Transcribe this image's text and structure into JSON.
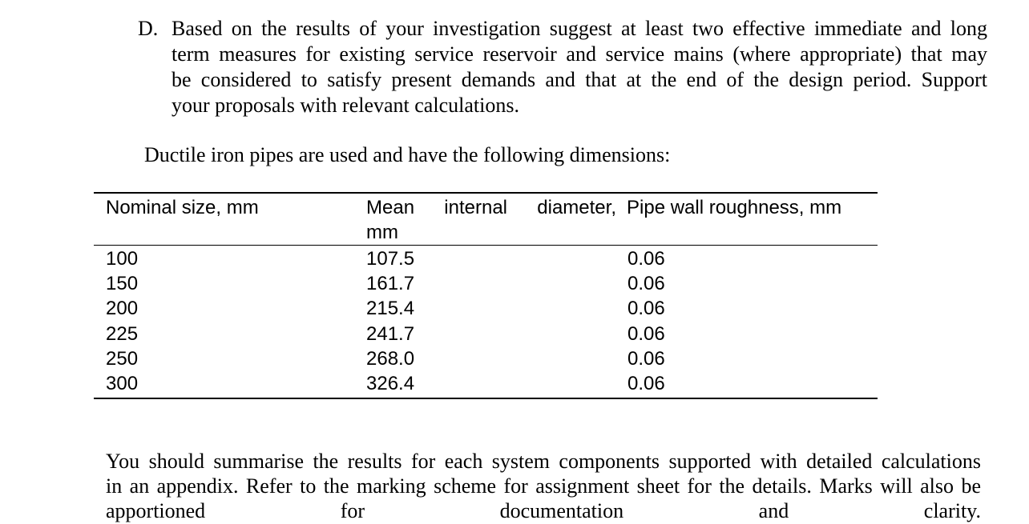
{
  "item_d": {
    "label": "D.",
    "lines": [
      "Based on the results of your investigation suggest at least two effective immediate and long",
      "term measures for existing service reservoir and service mains (where appropriate) that may",
      "be considered to satisfy present demands and that at the end of the design period. Support",
      "your proposals with relevant calculations."
    ]
  },
  "intro": "Ductile iron pipes are used and have the following dimensions:",
  "table": {
    "headers": {
      "nominal": "Nominal size, mm",
      "mean_line1": "Mean internal diameter,",
      "mean_line2": "mm",
      "roughness": "Pipe wall roughness, mm"
    },
    "rows": [
      {
        "nominal": "100",
        "mean": "107.5",
        "roughness": "0.06"
      },
      {
        "nominal": "150",
        "mean": "161.7",
        "roughness": "0.06"
      },
      {
        "nominal": "200",
        "mean": "215.4",
        "roughness": "0.06"
      },
      {
        "nominal": "225",
        "mean": "241.7",
        "roughness": "0.06"
      },
      {
        "nominal": "250",
        "mean": "268.0",
        "roughness": "0.06"
      },
      {
        "nominal": "300",
        "mean": "326.4",
        "roughness": "0.06"
      }
    ]
  },
  "closing": {
    "lines": [
      "You should summarise the results for each system components supported with detailed calculations",
      "in an appendix. Refer to the marking scheme for assignment sheet for the details. Marks will also be",
      "apportioned for documentation and clarity."
    ]
  }
}
